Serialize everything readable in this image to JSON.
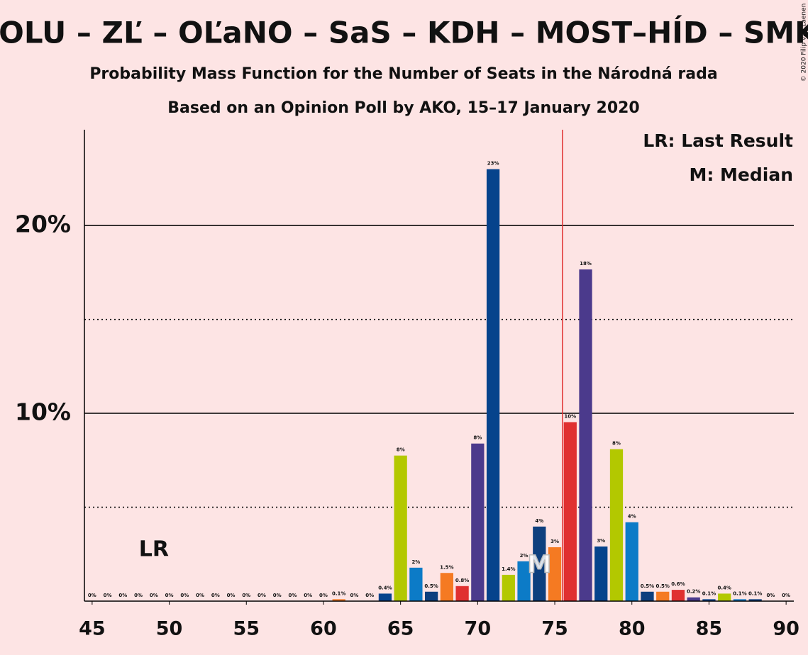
{
  "chart_data": {
    "type": "bar",
    "title": "POLU – ZĽ – OĽaNO – SaS – KDH – MOST–HÍD – SMK",
    "subtitle": "Probability Mass Function for the Number of Seats in the Národná rada",
    "subtitle2": "Based on an Opinion Poll by AKO, 15–17 January 2020",
    "copyright": "© 2020 Filip van Laenen",
    "legend": [
      "LR: Last Result",
      "M: Median"
    ],
    "last_result": 49,
    "last_result_label": "LR",
    "median": 74,
    "median_label": "M",
    "majority_line": 75.5,
    "majority_color": "#e03030",
    "x": [
      45,
      46,
      47,
      48,
      49,
      50,
      51,
      52,
      53,
      54,
      55,
      56,
      57,
      58,
      59,
      60,
      61,
      62,
      63,
      64,
      65,
      66,
      67,
      68,
      69,
      70,
      71,
      72,
      73,
      74,
      75,
      76,
      77,
      78,
      79,
      80,
      81,
      82,
      83,
      84,
      85,
      86,
      87,
      88,
      89,
      90
    ],
    "values": [
      0,
      0,
      0,
      0,
      0,
      0,
      0,
      0,
      0,
      0,
      0,
      0,
      0,
      0,
      0,
      0,
      0.1,
      0,
      0,
      0.4,
      7.75,
      1.78,
      0.5,
      1.5,
      0.8,
      8.39,
      23.0,
      1.4,
      2.12,
      3.97,
      2.87,
      9.53,
      17.66,
      2.91,
      8.09,
      4.2,
      0.5,
      0.5,
      0.6,
      0.2,
      0.1,
      0.4,
      0.1,
      0.1,
      0,
      0
    ],
    "value_labels": [
      "0%",
      "0%",
      "0%",
      "0%",
      "0%",
      "0%",
      "0%",
      "0%",
      "0%",
      "0%",
      "0%",
      "0%",
      "0%",
      "0%",
      "0%",
      "0%",
      "0.1%",
      "0%",
      "0%",
      "0.4%",
      "8%",
      "2%",
      "0.5%",
      "1.5%",
      "0.8%",
      "8%",
      "23%",
      "1.4%",
      "2%",
      "4%",
      "3%",
      "10%",
      "18%",
      "3%",
      "8%",
      "4%",
      "0.5%",
      "0.5%",
      "0.6%",
      "0.2%",
      "0.1%",
      "0.4%",
      "0.1%",
      "0.1%",
      "0%",
      "0%"
    ],
    "color_cycle": [
      "#06438c",
      "#b3c800",
      "#0c7bc7",
      "#0d3f7e",
      "#f57a22",
      "#e03030",
      "#4b3a8c"
    ],
    "color_cycle_start": 64,
    "xlim": [
      44.5,
      90.5
    ],
    "xticks": [
      45,
      50,
      55,
      60,
      65,
      70,
      75,
      80,
      85,
      90
    ],
    "ylim": [
      0,
      25.1
    ],
    "yticks": [
      {
        "value": 10,
        "label": "10%"
      },
      {
        "value": 20,
        "label": "20%"
      }
    ],
    "minor_yticks": [
      5,
      15
    ],
    "grid": true
  }
}
